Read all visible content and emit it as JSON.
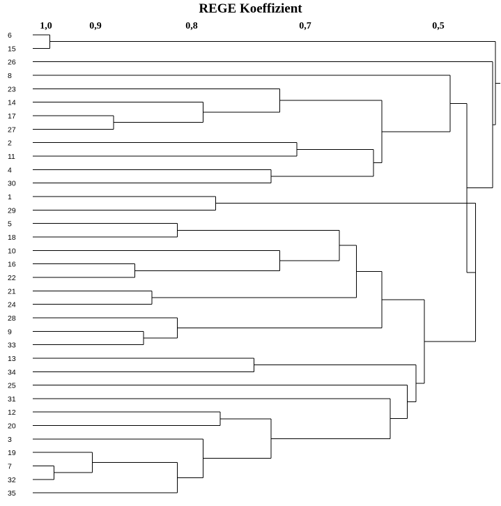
{
  "title": "REGE Koeffizient",
  "scale_labels": [
    "1,0",
    "0,9",
    "0,8",
    "0,7",
    "0,5"
  ],
  "leaves": [
    "6",
    "15",
    "26",
    "8",
    "23",
    "14",
    "17",
    "27",
    "2",
    "11",
    "4",
    "30",
    "1",
    "29",
    "5",
    "18",
    "10",
    "16",
    "22",
    "21",
    "24",
    "28",
    "9",
    "33",
    "13",
    "34",
    "25",
    "31",
    "12",
    "20",
    "3",
    "19",
    "7",
    "32",
    "35"
  ],
  "merges": [
    {
      "a": "L0",
      "b": "L1",
      "v": 0.98
    },
    {
      "a": "L6",
      "b": "L7",
      "v": 0.905
    },
    {
      "a": "L5",
      "b": "N1",
      "v": 0.8
    },
    {
      "a": "L4",
      "b": "N2",
      "v": 0.71
    },
    {
      "a": "L8",
      "b": "L9",
      "v": 0.69
    },
    {
      "a": "L10",
      "b": "L11",
      "v": 0.72
    },
    {
      "a": "N4",
      "b": "N5",
      "v": 0.6
    },
    {
      "a": "N3",
      "b": "N6",
      "v": 0.59
    },
    {
      "a": "L3",
      "b": "N7",
      "v": 0.51
    },
    {
      "a": "L12",
      "b": "L13",
      "v": 0.785
    },
    {
      "a": "L14",
      "b": "L15",
      "v": 0.83
    },
    {
      "a": "L17",
      "b": "L18",
      "v": 0.88
    },
    {
      "a": "L16",
      "b": "N11",
      "v": 0.71
    },
    {
      "a": "N10",
      "b": "N12",
      "v": 0.64
    },
    {
      "a": "L19",
      "b": "L20",
      "v": 0.86
    },
    {
      "a": "N13",
      "b": "N14",
      "v": 0.62
    },
    {
      "a": "L22",
      "b": "L23",
      "v": 0.87
    },
    {
      "a": "L21",
      "b": "N16",
      "v": 0.83
    },
    {
      "a": "N15",
      "b": "N17",
      "v": 0.59
    },
    {
      "a": "L24",
      "b": "L25",
      "v": 0.74
    },
    {
      "a": "L28",
      "b": "L29",
      "v": 0.78
    },
    {
      "a": "L32",
      "b": "L33",
      "v": 0.975
    },
    {
      "a": "L31",
      "b": "N21",
      "v": 0.93
    },
    {
      "a": "N22",
      "b": "L34",
      "v": 0.83
    },
    {
      "a": "L30",
      "b": "N23",
      "v": 0.8
    },
    {
      "a": "N20",
      "b": "N24",
      "v": 0.72
    },
    {
      "a": "L27",
      "b": "N25",
      "v": 0.58
    },
    {
      "a": "L26",
      "b": "N26",
      "v": 0.56
    },
    {
      "a": "N19",
      "b": "N27",
      "v": 0.55
    },
    {
      "a": "N18",
      "b": "N28",
      "v": 0.54
    },
    {
      "a": "N9",
      "b": "N29",
      "v": 0.48
    },
    {
      "a": "N8",
      "b": "N30",
      "v": 0.49
    },
    {
      "a": "L2",
      "b": "N31",
      "v": 0.46
    },
    {
      "a": "N0",
      "b": "N32",
      "v": 0.44
    }
  ]
}
